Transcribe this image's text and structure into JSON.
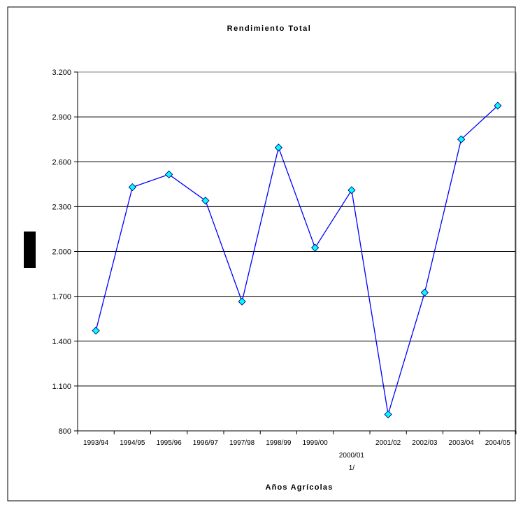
{
  "chart_data": {
    "type": "line",
    "title": "Rendimiento Total",
    "xlabel": "Años Agrícolas",
    "ylabel": "",
    "categories": [
      "1993/94",
      "1994/95",
      "1995/96",
      "1996/97",
      "1997/98",
      "1998/99",
      "1999/00",
      "2000/01 1/",
      "2001/02",
      "2002/03",
      "2003/04",
      "2004/05"
    ],
    "category_lines": [
      [
        "1993/94"
      ],
      [
        "1994/95"
      ],
      [
        "1995/96"
      ],
      [
        "1996/97"
      ],
      [
        "1997/98"
      ],
      [
        "1998/99"
      ],
      [
        "1999/00"
      ],
      [
        "",
        "2000/01",
        "1/"
      ],
      [
        "2001/02"
      ],
      [
        "2002/03"
      ],
      [
        "2003/04"
      ],
      [
        "2004/05"
      ]
    ],
    "series": [
      {
        "values": [
          1470,
          2430,
          2515,
          2340,
          1665,
          2695,
          2025,
          2410,
          910,
          1725,
          2750,
          2975
        ],
        "color": "#0000FF",
        "marker": "diamond",
        "marker_fill": "#00FFFF"
      }
    ],
    "ylim": [
      800,
      3200
    ],
    "yticks": [
      800,
      1100,
      1400,
      1700,
      2000,
      2300,
      2600,
      2900,
      3200
    ],
    "ytick_labels": [
      "800",
      "1.100",
      "1.400",
      "1.700",
      "2.000",
      "2.300",
      "2.600",
      "2.900",
      "3.200"
    ],
    "grid": true,
    "legend": "none"
  }
}
